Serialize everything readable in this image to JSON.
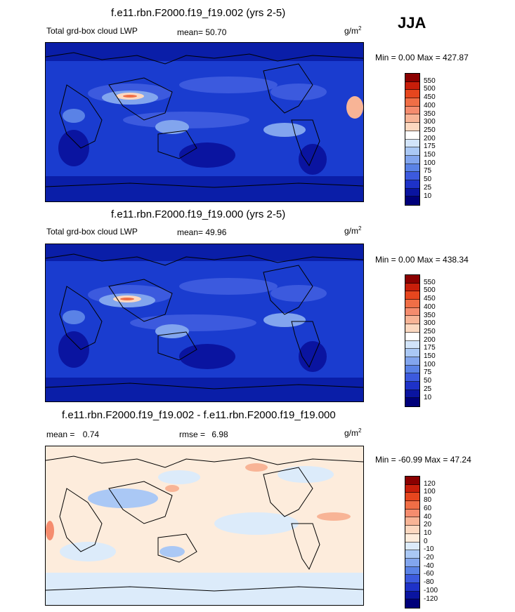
{
  "season": "JJA",
  "unit_base": "g/m",
  "unit_exp": "2",
  "panels": [
    {
      "title": "f.e11.rbn.F2000.f19_f19.002 (yrs 2-5)",
      "left_label": "Total grd-box cloud LWP",
      "stat_label": "mean=",
      "stat_value": "50.70",
      "minmax": "Min =   0.00 Max = 427.87"
    },
    {
      "title": "f.e11.rbn.F2000.f19_f19.000 (yrs 2-5)",
      "left_label": "Total grd-box cloud LWP",
      "stat_label": "mean=",
      "stat_value": "49.96",
      "minmax": "Min =   0.00 Max = 438.34"
    },
    {
      "title": "f.e11.rbn.F2000.f19_f19.002 - f.e11.rbn.F2000.f19_f19.000",
      "left_label": "mean =",
      "left_value": "0.74",
      "stat_label": "rmse =",
      "stat_value": "6.98",
      "minmax": "Min = -60.99 Max =  47.24"
    }
  ],
  "colorbars": {
    "lwp": {
      "labels": [
        "550",
        "500",
        "450",
        "400",
        "350",
        "300",
        "250",
        "200",
        "175",
        "150",
        "100",
        "75",
        "50",
        "25",
        "10"
      ],
      "colors": [
        "#8b0000",
        "#c81e0a",
        "#e6461e",
        "#f06e46",
        "#f58c6e",
        "#f8b496",
        "#fcd8c0",
        "#ffffff",
        "#d2e4fa",
        "#aac8f5",
        "#82a5ee",
        "#5a82e6",
        "#3c5ade",
        "#1e32c8",
        "#0a14a0",
        "#00007a"
      ]
    },
    "diff": {
      "labels": [
        "120",
        "100",
        "80",
        "60",
        "40",
        "20",
        "10",
        "0",
        "-10",
        "-20",
        "-40",
        "-60",
        "-80",
        "-100",
        "-120"
      ],
      "colors": [
        "#8b0000",
        "#c81e0a",
        "#e6461e",
        "#f06e46",
        "#f58c6e",
        "#f8b496",
        "#fcd8c0",
        "#fdecdc",
        "#dcebfa",
        "#aac8f5",
        "#82a5ee",
        "#5a82e6",
        "#3c5ade",
        "#1e32c8",
        "#0a14a0",
        "#00007a"
      ]
    }
  }
}
